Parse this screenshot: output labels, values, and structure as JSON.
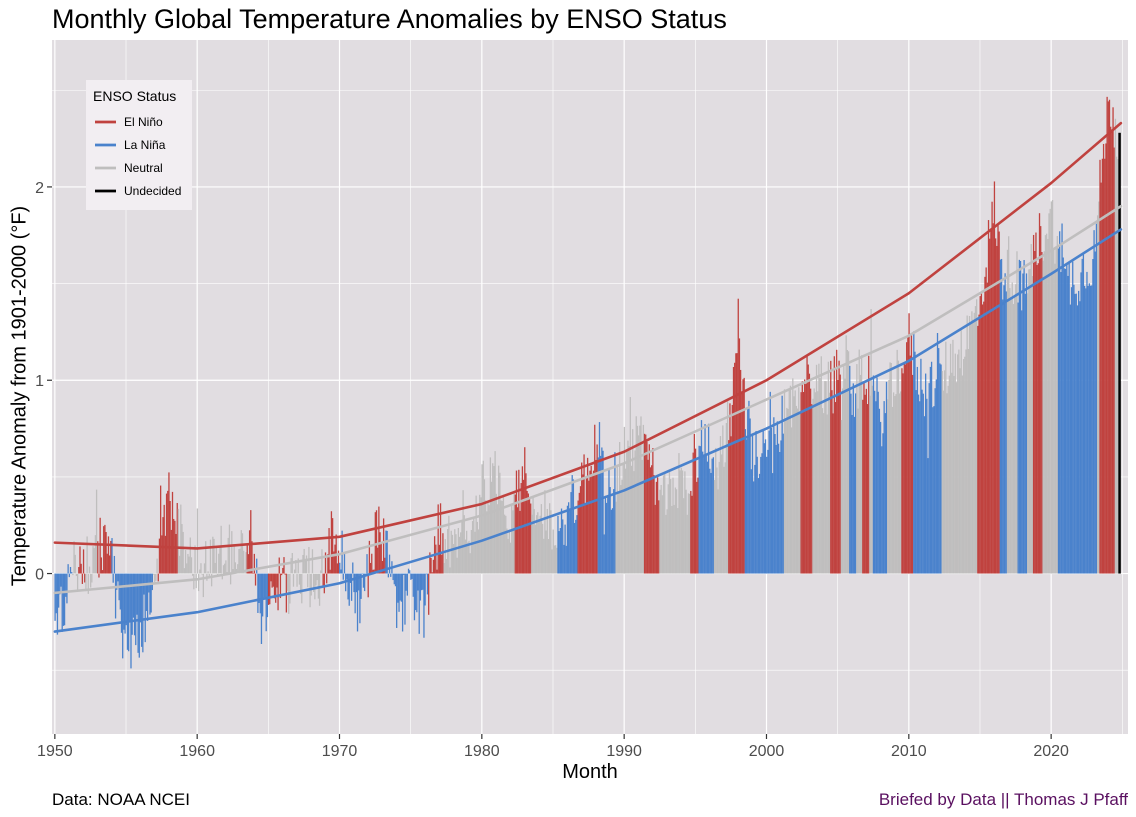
{
  "title": "Monthly Global Temperature Anomalies by ENSO Status",
  "caption_left": "Data: NOAA NCEI",
  "caption_right": "Briefed by Data || Thomas J Pfaff",
  "colors": {
    "el_nino": "#c0423f",
    "la_nina": "#4a82cc",
    "neutral": "#bfbebe",
    "undecided": "#000000",
    "panel": "#e1dde1",
    "grid": "#ffffff",
    "caption_right": "#5a1060"
  },
  "chart_data": {
    "type": "bar",
    "xlabel": "Month",
    "ylabel": "Temperature Anomaly from  1901-2000  (°F)",
    "xlim": [
      1949.8,
      2025.4
    ],
    "ylim": [
      -0.83,
      2.76
    ],
    "x_ticks": [
      "1950",
      "1960",
      "1970",
      "1980",
      "1990",
      "2000",
      "2010",
      "2020"
    ],
    "y_ticks": [
      "0",
      "1",
      "2"
    ],
    "grid": true,
    "legend": {
      "title": "ENSO Status",
      "placement": "top-left",
      "entries": [
        "El Niño",
        "La Niña",
        "Neutral",
        "Undecided"
      ]
    },
    "enso_periods": [
      {
        "start": 1950.0,
        "end": 1951.2,
        "status": "La Niña"
      },
      {
        "start": 1951.2,
        "end": 1951.6,
        "status": "Neutral"
      },
      {
        "start": 1951.6,
        "end": 1952.1,
        "status": "El Niño"
      },
      {
        "start": 1952.1,
        "end": 1953.0,
        "status": "Neutral"
      },
      {
        "start": 1953.0,
        "end": 1954.0,
        "status": "El Niño"
      },
      {
        "start": 1954.0,
        "end": 1956.9,
        "status": "La Niña"
      },
      {
        "start": 1956.9,
        "end": 1957.2,
        "status": "Neutral"
      },
      {
        "start": 1957.2,
        "end": 1958.6,
        "status": "El Niño"
      },
      {
        "start": 1958.6,
        "end": 1963.5,
        "status": "Neutral"
      },
      {
        "start": 1963.5,
        "end": 1964.1,
        "status": "El Niño"
      },
      {
        "start": 1964.1,
        "end": 1965.0,
        "status": "La Niña"
      },
      {
        "start": 1965.0,
        "end": 1966.3,
        "status": "El Niño"
      },
      {
        "start": 1966.3,
        "end": 1968.8,
        "status": "Neutral"
      },
      {
        "start": 1968.8,
        "end": 1970.0,
        "status": "El Niño"
      },
      {
        "start": 1970.0,
        "end": 1972.0,
        "status": "La Niña"
      },
      {
        "start": 1972.0,
        "end": 1973.2,
        "status": "El Niño"
      },
      {
        "start": 1973.2,
        "end": 1976.2,
        "status": "La Niña"
      },
      {
        "start": 1976.2,
        "end": 1977.3,
        "status": "El Niño"
      },
      {
        "start": 1977.3,
        "end": 1982.3,
        "status": "Neutral"
      },
      {
        "start": 1982.3,
        "end": 1983.5,
        "status": "El Niño"
      },
      {
        "start": 1983.5,
        "end": 1985.3,
        "status": "Neutral"
      },
      {
        "start": 1985.3,
        "end": 1986.7,
        "status": "La Niña"
      },
      {
        "start": 1986.7,
        "end": 1988.1,
        "status": "El Niño"
      },
      {
        "start": 1988.1,
        "end": 1989.4,
        "status": "La Niña"
      },
      {
        "start": 1989.4,
        "end": 1991.4,
        "status": "Neutral"
      },
      {
        "start": 1991.4,
        "end": 1992.5,
        "status": "El Niño"
      },
      {
        "start": 1992.5,
        "end": 1994.6,
        "status": "Neutral"
      },
      {
        "start": 1994.6,
        "end": 1995.2,
        "status": "El Niño"
      },
      {
        "start": 1995.2,
        "end": 1996.3,
        "status": "La Niña"
      },
      {
        "start": 1996.3,
        "end": 1997.3,
        "status": "Neutral"
      },
      {
        "start": 1997.3,
        "end": 1998.5,
        "status": "El Niño"
      },
      {
        "start": 1998.5,
        "end": 2001.2,
        "status": "La Niña"
      },
      {
        "start": 2001.2,
        "end": 2002.4,
        "status": "Neutral"
      },
      {
        "start": 2002.4,
        "end": 2003.2,
        "status": "El Niño"
      },
      {
        "start": 2003.2,
        "end": 2004.5,
        "status": "Neutral"
      },
      {
        "start": 2004.5,
        "end": 2005.2,
        "status": "El Niño"
      },
      {
        "start": 2005.2,
        "end": 2005.8,
        "status": "Neutral"
      },
      {
        "start": 2005.8,
        "end": 2006.3,
        "status": "La Niña"
      },
      {
        "start": 2006.3,
        "end": 2006.7,
        "status": "Neutral"
      },
      {
        "start": 2006.7,
        "end": 2007.2,
        "status": "El Niño"
      },
      {
        "start": 2007.2,
        "end": 2007.5,
        "status": "Neutral"
      },
      {
        "start": 2007.5,
        "end": 2008.5,
        "status": "La Niña"
      },
      {
        "start": 2008.5,
        "end": 2009.5,
        "status": "Neutral"
      },
      {
        "start": 2009.5,
        "end": 2010.3,
        "status": "El Niño"
      },
      {
        "start": 2010.3,
        "end": 2012.3,
        "status": "La Niña"
      },
      {
        "start": 2012.3,
        "end": 2014.8,
        "status": "Neutral"
      },
      {
        "start": 2014.8,
        "end": 2016.4,
        "status": "El Niño"
      },
      {
        "start": 2016.4,
        "end": 2016.9,
        "status": "La Niña"
      },
      {
        "start": 2016.9,
        "end": 2017.6,
        "status": "Neutral"
      },
      {
        "start": 2017.6,
        "end": 2018.3,
        "status": "La Niña"
      },
      {
        "start": 2018.3,
        "end": 2018.7,
        "status": "Neutral"
      },
      {
        "start": 2018.7,
        "end": 2019.4,
        "status": "El Niño"
      },
      {
        "start": 2019.4,
        "end": 2020.5,
        "status": "Neutral"
      },
      {
        "start": 2020.5,
        "end": 2023.2,
        "status": "La Niña"
      },
      {
        "start": 2023.2,
        "end": 2023.4,
        "status": "Neutral"
      },
      {
        "start": 2023.4,
        "end": 2024.5,
        "status": "El Niño"
      },
      {
        "start": 2024.5,
        "end": 2024.75,
        "status": "Neutral"
      },
      {
        "start": 2024.75,
        "end": 2024.92,
        "status": "Undecided"
      }
    ],
    "anomaly_keyframes": [
      [
        1950.0,
        -0.32
      ],
      [
        1950.5,
        -0.2
      ],
      [
        1951.5,
        0.05
      ],
      [
        1952.0,
        0.1
      ],
      [
        1952.5,
        0.0
      ],
      [
        1953.5,
        0.2
      ],
      [
        1954.5,
        -0.2
      ],
      [
        1955.0,
        -0.35
      ],
      [
        1956.0,
        -0.3
      ],
      [
        1956.8,
        -0.15
      ],
      [
        1957.5,
        0.2
      ],
      [
        1958.0,
        0.4
      ],
      [
        1958.5,
        0.25
      ],
      [
        1959.5,
        0.1
      ],
      [
        1960.5,
        0.0
      ],
      [
        1961.5,
        0.1
      ],
      [
        1962.5,
        0.1
      ],
      [
        1963.8,
        0.2
      ],
      [
        1964.5,
        -0.3
      ],
      [
        1965.5,
        -0.05
      ],
      [
        1966.5,
        -0.05
      ],
      [
        1967.5,
        0.0
      ],
      [
        1968.5,
        -0.05
      ],
      [
        1969.5,
        0.2
      ],
      [
        1970.5,
        0.0
      ],
      [
        1971.5,
        -0.15
      ],
      [
        1972.5,
        0.2
      ],
      [
        1973.0,
        0.3
      ],
      [
        1974.0,
        -0.2
      ],
      [
        1975.0,
        -0.1
      ],
      [
        1976.0,
        -0.2
      ],
      [
        1977.0,
        0.25
      ],
      [
        1978.0,
        0.1
      ],
      [
        1979.0,
        0.2
      ],
      [
        1980.0,
        0.45
      ],
      [
        1981.0,
        0.5
      ],
      [
        1982.0,
        0.3
      ],
      [
        1983.0,
        0.55
      ],
      [
        1984.0,
        0.3
      ],
      [
        1985.0,
        0.25
      ],
      [
        1986.0,
        0.3
      ],
      [
        1987.5,
        0.55
      ],
      [
        1988.0,
        0.7
      ],
      [
        1989.0,
        0.4
      ],
      [
        1990.0,
        0.65
      ],
      [
        1991.0,
        0.7
      ],
      [
        1992.5,
        0.4
      ],
      [
        1993.5,
        0.4
      ],
      [
        1994.5,
        0.5
      ],
      [
        1995.5,
        0.7
      ],
      [
        1996.5,
        0.55
      ],
      [
        1997.5,
        0.85
      ],
      [
        1998.0,
        1.2
      ],
      [
        1999.0,
        0.6
      ],
      [
        2000.0,
        0.6
      ],
      [
        2001.5,
        0.85
      ],
      [
        2002.5,
        1.0
      ],
      [
        2003.5,
        1.0
      ],
      [
        2004.5,
        0.95
      ],
      [
        2005.5,
        1.15
      ],
      [
        2006.0,
        0.95
      ],
      [
        2007.0,
        1.05
      ],
      [
        2008.0,
        0.8
      ],
      [
        2009.0,
        1.0
      ],
      [
        2010.0,
        1.2
      ],
      [
        2011.0,
        0.95
      ],
      [
        2012.0,
        1.0
      ],
      [
        2013.0,
        1.1
      ],
      [
        2014.0,
        1.2
      ],
      [
        2015.0,
        1.4
      ],
      [
        2016.0,
        1.9
      ],
      [
        2016.5,
        1.55
      ],
      [
        2017.0,
        1.6
      ],
      [
        2018.0,
        1.45
      ],
      [
        2019.0,
        1.7
      ],
      [
        2020.0,
        1.85
      ],
      [
        2021.0,
        1.5
      ],
      [
        2022.0,
        1.55
      ],
      [
        2023.0,
        1.65
      ],
      [
        2023.8,
        2.3
      ],
      [
        2024.2,
        2.45
      ],
      [
        2024.6,
        2.25
      ],
      [
        2024.9,
        2.25
      ]
    ],
    "trend_lines": [
      {
        "name": "El Niño",
        "x": [
          1950,
          1960,
          1970,
          1980,
          1990,
          2000,
          2010,
          2020,
          2024.9
        ],
        "y": [
          0.16,
          0.13,
          0.19,
          0.36,
          0.63,
          1.0,
          1.45,
          2.02,
          2.33
        ]
      },
      {
        "name": "Neutral",
        "x": [
          1950,
          1960,
          1970,
          1980,
          1990,
          2000,
          2010,
          2020,
          2024.9
        ],
        "y": [
          -0.1,
          -0.03,
          0.1,
          0.3,
          0.57,
          0.9,
          1.23,
          1.67,
          1.9
        ]
      },
      {
        "name": "La Niña",
        "x": [
          1950,
          1960,
          1970,
          1980,
          1990,
          2000,
          2010,
          2020,
          2024.9
        ],
        "y": [
          -0.3,
          -0.2,
          -0.05,
          0.17,
          0.43,
          0.75,
          1.1,
          1.55,
          1.78
        ]
      }
    ]
  }
}
